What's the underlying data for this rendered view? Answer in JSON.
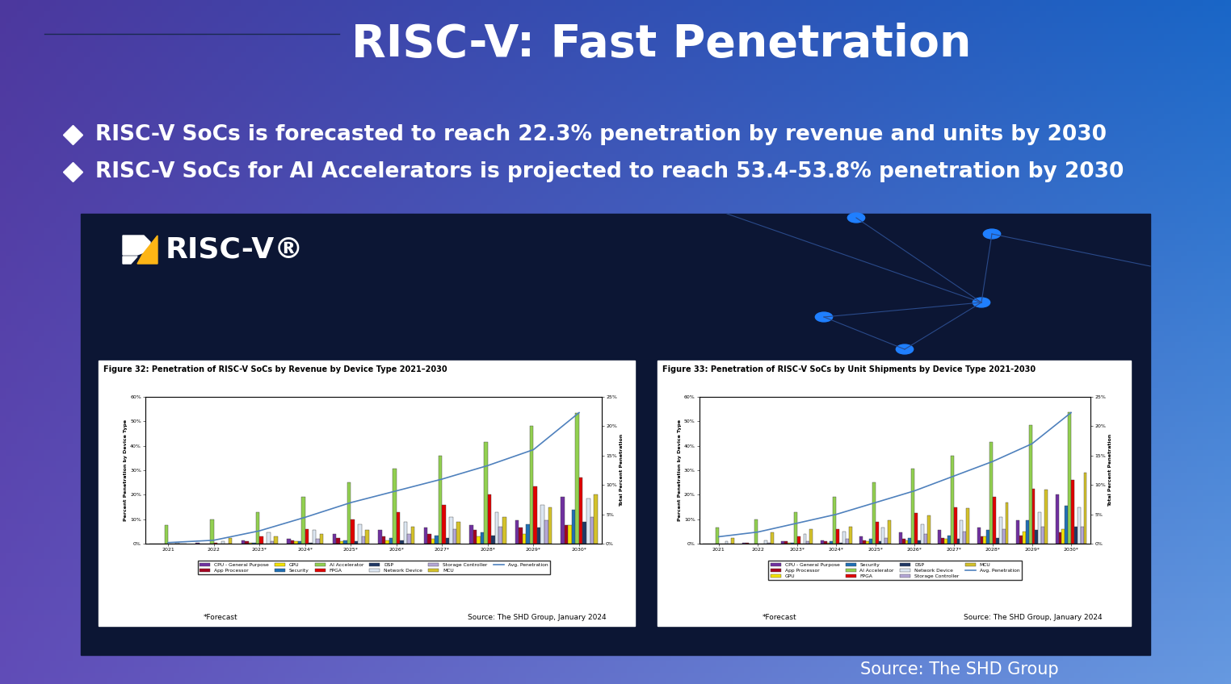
{
  "title": "RISC-V: Fast Penetration",
  "bullets": [
    "RISC-V SoCs is forecasted to reach 22.3% penetration by revenue and units by 2030",
    "RISC-V SoCs for AI Accelerators is projected to reach 53.4-53.8% penetration by 2030"
  ],
  "logo": "RISC-V®",
  "source": "Source: The SHD Group",
  "chart_data": [
    {
      "type": "bar",
      "title": "Figure 32: Penetration of RISC-V SoCs by Revenue by Device Type 2021–2030",
      "categories": [
        "2021",
        "2022",
        "2023*",
        "2024*",
        "2025*",
        "2026*",
        "2027*",
        "2028*",
        "2029*",
        "2030*"
      ],
      "y_label": "Percent Penetration by Device Type",
      "y2_label": "Total Percent Penetration",
      "ylim": [
        0,
        60
      ],
      "yticks": [
        {
          "value": 0,
          "label": "0%"
        },
        {
          "value": 10,
          "label": "10%"
        },
        {
          "value": 20,
          "label": "20%"
        },
        {
          "value": 30,
          "label": "30%"
        },
        {
          "value": 40,
          "label": "40%"
        },
        {
          "value": 50,
          "label": "50%"
        },
        {
          "value": 60,
          "label": "60%"
        }
      ],
      "y2lim": [
        0,
        25
      ],
      "y2ticks": [
        {
          "value": 0,
          "label": "0%"
        },
        {
          "value": 5,
          "label": "5%"
        },
        {
          "value": 10,
          "label": "10%"
        },
        {
          "value": 15,
          "label": "15%"
        },
        {
          "value": 20,
          "label": "20%"
        },
        {
          "value": 25,
          "label": "25%"
        }
      ],
      "grid": false,
      "legend": "bottom",
      "footnote": "*Forecast",
      "source": "Source: The SHD Group, January 2024",
      "series": [
        {
          "name": "CPU - General Purpose",
          "color": "#7030a0",
          "values": [
            0,
            0.5,
            1.5,
            2,
            4,
            5.5,
            6.5,
            7.5,
            9.5,
            19
          ]
        },
        {
          "name": "App Processor",
          "color": "#a50021",
          "values": [
            0,
            0.2,
            1,
            1.5,
            2.5,
            3,
            4,
            5.5,
            6.5,
            7.5
          ]
        },
        {
          "name": "GPU",
          "color": "#f5e400",
          "values": [
            0,
            0,
            0.5,
            1,
            1,
            1.5,
            2,
            3,
            4,
            7.5
          ]
        },
        {
          "name": "Security",
          "color": "#1f6fb5",
          "values": [
            0,
            0,
            0.5,
            1,
            1.5,
            2.5,
            3.5,
            4.5,
            8,
            14
          ]
        },
        {
          "name": "AI Accelerator",
          "color": "#92d050",
          "values": [
            7.5,
            10,
            13,
            19,
            25,
            30.5,
            36,
            41.5,
            48,
            53.4
          ]
        },
        {
          "name": "FPGA",
          "color": "#e00000",
          "values": [
            0,
            0.3,
            3,
            6,
            10,
            13,
            16,
            20,
            23.5,
            27
          ]
        },
        {
          "name": "DSP",
          "color": "#1f3864",
          "values": [
            0,
            0,
            0,
            0.5,
            1,
            1.5,
            2.5,
            3.5,
            6.5,
            9
          ]
        },
        {
          "name": "Network Device",
          "color": "#dce6f2",
          "values": [
            0.5,
            1,
            4.5,
            5.5,
            8,
            9,
            11,
            13,
            16,
            18.5
          ]
        },
        {
          "name": "Storage Controller",
          "color": "#b4a7d6",
          "values": [
            0,
            0.2,
            1,
            2,
            3,
            4,
            6,
            7,
            9.5,
            11
          ]
        },
        {
          "name": "MCU",
          "color": "#d4c22a",
          "values": [
            0,
            2.5,
            3,
            4,
            5.5,
            7,
            9,
            11,
            15,
            20
          ]
        },
        {
          "name": "Avg. Penetration",
          "type": "line",
          "axis": "y2",
          "color": "#4f81bd",
          "values": [
            0.2,
            0.6,
            2.2,
            4.5,
            7,
            9,
            11,
            13.3,
            16,
            22.3
          ]
        }
      ]
    },
    {
      "type": "bar",
      "title": "Figure 33: Penetration of RISC-V SoCs by Unit Shipments by Device Type 2021-2030",
      "categories": [
        "2021",
        "2022",
        "2023*",
        "2024*",
        "2025*",
        "2026*",
        "2027*",
        "2028*",
        "2029*",
        "2030*"
      ],
      "y_label": "Percent Penetration by Device Type",
      "y2_label": "Total Percent Penetration",
      "ylim": [
        0,
        60
      ],
      "yticks": [
        {
          "value": 0,
          "label": "0%"
        },
        {
          "value": 10,
          "label": "10%"
        },
        {
          "value": 20,
          "label": "20%"
        },
        {
          "value": 30,
          "label": "30%"
        },
        {
          "value": 40,
          "label": "40%"
        },
        {
          "value": 50,
          "label": "50%"
        },
        {
          "value": 60,
          "label": "60%"
        }
      ],
      "y2lim": [
        0,
        25
      ],
      "y2ticks": [
        {
          "value": 0,
          "label": "0%"
        },
        {
          "value": 5,
          "label": "5%"
        },
        {
          "value": 10,
          "label": "10%"
        },
        {
          "value": 15,
          "label": "15%"
        },
        {
          "value": 20,
          "label": "20%"
        },
        {
          "value": 25,
          "label": "25%"
        }
      ],
      "grid": false,
      "legend": "bottom",
      "footnote": "*Forecast",
      "source": "Source: The SHD Group, January 2024",
      "series": [
        {
          "name": "CPU - General Purpose",
          "color": "#7030a0",
          "values": [
            0,
            0.5,
            1,
            1.5,
            3,
            4.5,
            5.5,
            6.5,
            9.5,
            20
          ]
        },
        {
          "name": "App Processor",
          "color": "#a50021",
          "values": [
            0,
            0.5,
            1,
            1,
            1.5,
            2,
            2.5,
            3,
            3.5,
            4.5
          ]
        },
        {
          "name": "GPU",
          "color": "#f5e400",
          "values": [
            0,
            0,
            0.5,
            0.5,
            1,
            1.5,
            2,
            3,
            5,
            6
          ]
        },
        {
          "name": "Security",
          "color": "#1f6fb5",
          "values": [
            0,
            0,
            0.5,
            1,
            2,
            2.5,
            3.5,
            5.5,
            9.5,
            15.5
          ]
        },
        {
          "name": "AI Accelerator",
          "color": "#92d050",
          "values": [
            6.5,
            10,
            13,
            19,
            25,
            30.5,
            36,
            41.5,
            48.5,
            53.8
          ]
        },
        {
          "name": "FPGA",
          "color": "#e00000",
          "values": [
            0,
            0,
            3,
            6,
            9,
            12.5,
            15,
            19,
            22.5,
            26
          ]
        },
        {
          "name": "DSP",
          "color": "#1f3864",
          "values": [
            0,
            0,
            0,
            0.5,
            1,
            1.5,
            2,
            2.5,
            5.5,
            7
          ]
        },
        {
          "name": "Network Device",
          "color": "#dce6f2",
          "values": [
            1,
            1.5,
            4,
            5,
            6.5,
            8,
            9.5,
            11,
            13,
            15
          ]
        },
        {
          "name": "Storage Controller",
          "color": "#b4a7d6",
          "values": [
            0,
            0.3,
            1,
            2,
            2.5,
            4,
            5,
            6,
            7,
            7
          ]
        },
        {
          "name": "MCU",
          "color": "#d4c22a",
          "values": [
            2.5,
            4.5,
            6,
            7,
            9.5,
            11.5,
            14.5,
            17,
            22,
            29
          ]
        },
        {
          "name": "Avg. Penetration",
          "type": "line",
          "axis": "y2",
          "color": "#4f81bd",
          "values": [
            1.2,
            2,
            3.5,
            5,
            7,
            9,
            11.5,
            14,
            17,
            22.3
          ]
        }
      ]
    }
  ]
}
